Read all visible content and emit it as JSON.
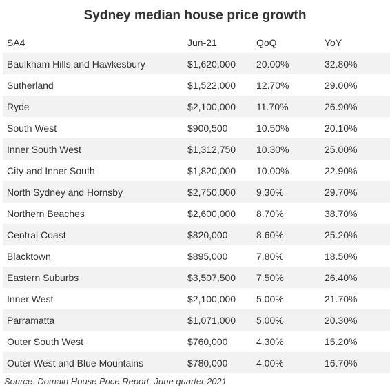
{
  "chart_data": {
    "type": "table",
    "title": "Sydney median house price growth",
    "columns": [
      "SA4",
      "Jun-21",
      "QoQ",
      "YoY"
    ],
    "rows": [
      [
        "Baulkham Hills and Hawkesbury",
        "$1,620,000",
        "20.00%",
        "32.80%"
      ],
      [
        "Sutherland",
        "$1,522,000",
        "12.70%",
        "29.00%"
      ],
      [
        "Ryde",
        "$2,100,000",
        "11.70%",
        "26.90%"
      ],
      [
        "South West",
        "$900,500",
        "10.50%",
        "20.10%"
      ],
      [
        "Inner South West",
        "$1,312,750",
        "10.30%",
        "25.00%"
      ],
      [
        "City and Inner South",
        "$1,820,000",
        "10.00%",
        "22.90%"
      ],
      [
        "North Sydney and Hornsby",
        "$2,750,000",
        "9.30%",
        "29.70%"
      ],
      [
        "Northern Beaches",
        "$2,600,000",
        "8.70%",
        "38.70%"
      ],
      [
        "Central Coast",
        "$820,000",
        "8.60%",
        "25.20%"
      ],
      [
        "Blacktown",
        "$895,000",
        "7.80%",
        "18.50%"
      ],
      [
        "Eastern Suburbs",
        "$3,507,500",
        "7.50%",
        "26.40%"
      ],
      [
        "Inner West",
        "$2,100,000",
        "5.00%",
        "21.70%"
      ],
      [
        "Parramatta",
        "$1,071,000",
        "5.00%",
        "20.30%"
      ],
      [
        "Outer South West",
        "$760,000",
        "4.30%",
        "15.20%"
      ],
      [
        "Outer West and Blue Mountains",
        "$780,000",
        "4.00%",
        "16.70%"
      ]
    ],
    "source": "Source: Domain House Price Report, June quarter 2021",
    "colors": {
      "stripe": "#f2f2f2",
      "text": "#333333"
    }
  }
}
